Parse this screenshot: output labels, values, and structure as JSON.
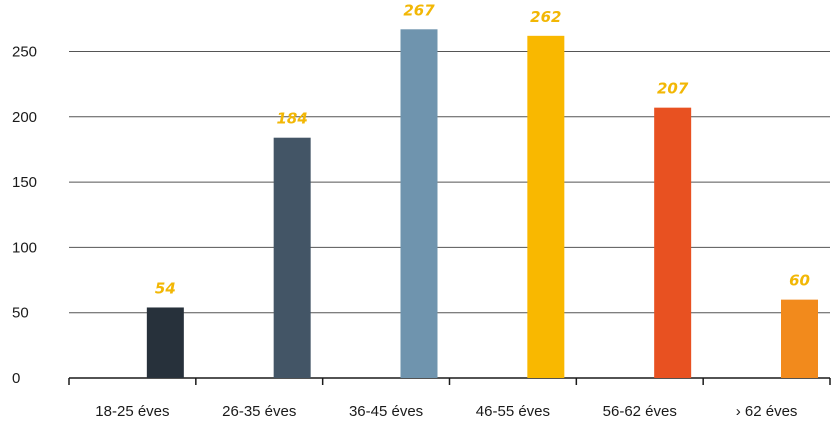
{
  "chart_data": {
    "type": "bar",
    "categories": [
      "18-25 éves",
      "26-35 éves",
      "36-45 éves",
      "46-55 éves",
      "56-62 éves",
      "› 62 éves"
    ],
    "values": [
      54,
      184,
      267,
      262,
      207,
      60
    ],
    "data_labels": [
      "54",
      "184",
      "267",
      "262",
      "207",
      "60"
    ],
    "bar_colors": [
      "#27313b",
      "#435566",
      "#6f94ae",
      "#f9b800",
      "#e85121",
      "#f28a1c"
    ],
    "data_label_color": "#f2b705",
    "yticks": [
      "0",
      "50",
      "100",
      "150",
      "200",
      "250"
    ],
    "ylim": [
      0,
      290
    ],
    "grid": true,
    "legend": "none"
  }
}
